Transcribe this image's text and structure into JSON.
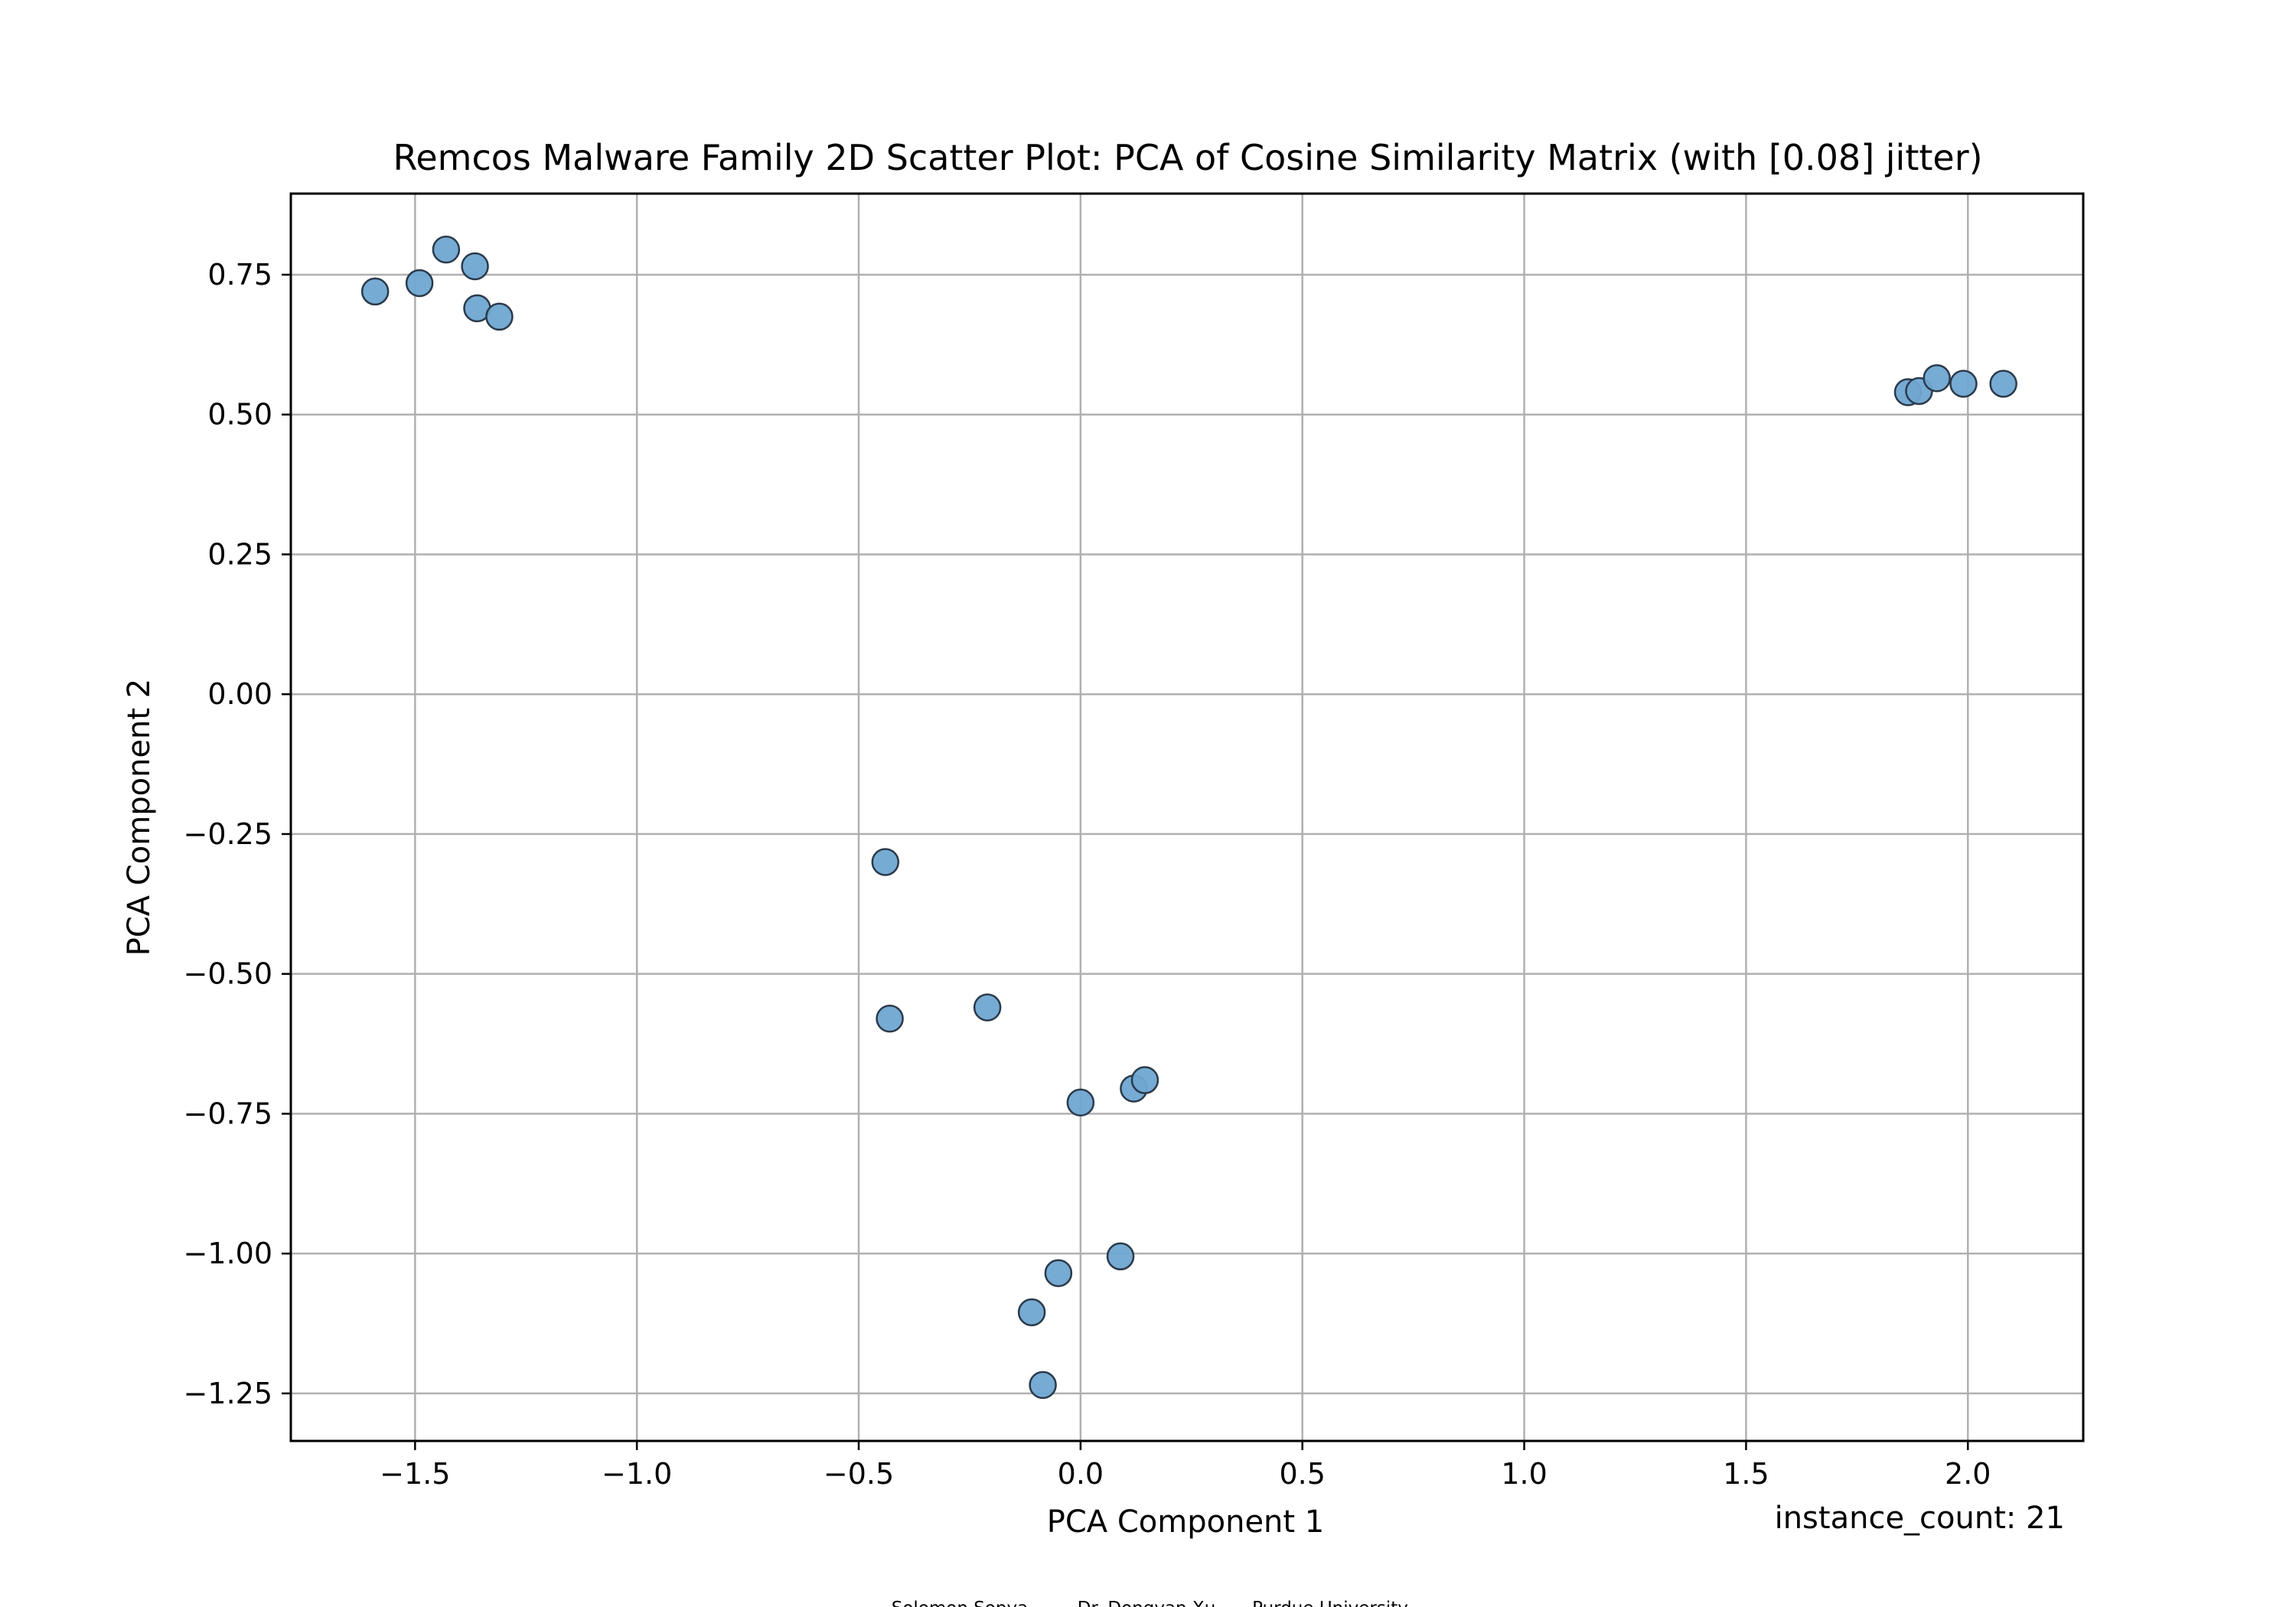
{
  "chart_data": {
    "type": "scatter",
    "title": "Remcos Malware Family 2D Scatter Plot: PCA of Cosine Similarity Matrix (with [0.08] jitter)",
    "xlabel": "PCA Component 1",
    "ylabel": "PCA Component 2",
    "xlim": [
      -1.78,
      2.26
    ],
    "ylim": [
      -1.335,
      0.895
    ],
    "xticks": [
      -1.5,
      -1.0,
      -0.5,
      0.0,
      0.5,
      1.0,
      1.5,
      2.0
    ],
    "xtick_labels": [
      "−1.5",
      "−1.0",
      "−0.5",
      "0.0",
      "0.5",
      "1.0",
      "1.5",
      "2.0"
    ],
    "yticks": [
      0.75,
      0.5,
      0.25,
      0.0,
      -0.25,
      -0.5,
      -0.75,
      -1.0,
      -1.25
    ],
    "ytick_labels": [
      "0.75",
      "0.50",
      "0.25",
      "0.00",
      "−0.25",
      "−0.50",
      "−0.75",
      "−1.00",
      "−1.25"
    ],
    "grid": true,
    "marker_color": "#6fa7d1",
    "marker_edge_color": "#2b3a4a",
    "annotation": "instance_count: 21",
    "footer": [
      "Solomon Sonya",
      "Dr. Dongyan Xu",
      "Purdue University"
    ],
    "points": [
      {
        "x": -1.59,
        "y": 0.72
      },
      {
        "x": -1.49,
        "y": 0.735
      },
      {
        "x": -1.43,
        "y": 0.795
      },
      {
        "x": -1.365,
        "y": 0.765
      },
      {
        "x": -1.36,
        "y": 0.69
      },
      {
        "x": -1.31,
        "y": 0.675
      },
      {
        "x": 1.865,
        "y": 0.54
      },
      {
        "x": 1.89,
        "y": 0.542
      },
      {
        "x": 1.93,
        "y": 0.565
      },
      {
        "x": 1.99,
        "y": 0.555
      },
      {
        "x": 2.08,
        "y": 0.555
      },
      {
        "x": -0.44,
        "y": -0.3
      },
      {
        "x": -0.43,
        "y": -0.58
      },
      {
        "x": -0.21,
        "y": -0.56
      },
      {
        "x": 0.0,
        "y": -0.73
      },
      {
        "x": 0.12,
        "y": -0.705
      },
      {
        "x": 0.145,
        "y": -0.69
      },
      {
        "x": 0.09,
        "y": -1.005
      },
      {
        "x": -0.05,
        "y": -1.035
      },
      {
        "x": -0.11,
        "y": -1.105
      },
      {
        "x": -0.085,
        "y": -1.235
      }
    ]
  }
}
